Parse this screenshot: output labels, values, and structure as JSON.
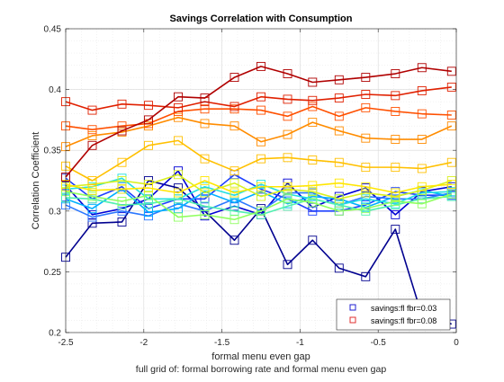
{
  "chart_data": {
    "type": "line",
    "title": "Savings Correlation with Consumption",
    "xlabel": "formal menu even gap",
    "ylabel": "Correlation Coefficient",
    "footnote": "full grid of: formal borrowing rate and formal menu even gap",
    "xlim": [
      -2.5,
      0
    ],
    "ylim": [
      0.2,
      0.45
    ],
    "xticks": [
      -2.5,
      -2,
      -1.5,
      -1,
      -0.5,
      0
    ],
    "xtick_labels": [
      "-2.5",
      "-2",
      "-1.5",
      "-1",
      "-0.5",
      "0"
    ],
    "yticks": [
      0.2,
      0.25,
      0.3,
      0.35,
      0.4,
      0.45
    ],
    "ytick_labels": [
      "0.2",
      "0.25",
      "0.3",
      "0.35",
      "0.4",
      "0.45"
    ],
    "grid": true,
    "marker": "square",
    "legend_position": "bottom-right",
    "legend": [
      {
        "label": "savings:fl   fbr=0.03",
        "color": "#1f1fd0"
      },
      {
        "label": "savings:fl   fbr=0.08",
        "color": "#e03030"
      }
    ],
    "x": [
      -2.5,
      -2.33,
      -2.14,
      -1.97,
      -1.78,
      -1.61,
      -1.42,
      -1.25,
      -1.08,
      -0.92,
      -0.75,
      -0.58,
      -0.39,
      -0.22,
      -0.03
    ],
    "series": [
      {
        "color": "#00008f",
        "values": [
          0.262,
          0.29,
          0.291,
          0.325,
          0.319,
          0.3,
          0.276,
          0.302,
          0.256,
          0.276,
          0.253,
          0.246,
          0.285,
          0.214,
          0.207
        ]
      },
      {
        "color": "#0000d4",
        "values": [
          0.321,
          0.297,
          0.302,
          0.31,
          0.333,
          0.296,
          0.304,
          0.297,
          0.323,
          0.303,
          0.312,
          0.319,
          0.297,
          0.316,
          0.32
        ]
      },
      {
        "color": "#1e40ff",
        "values": [
          0.327,
          0.31,
          0.32,
          0.302,
          0.31,
          0.31,
          0.33,
          0.318,
          0.31,
          0.3,
          0.3,
          0.305,
          0.316,
          0.313,
          0.313
        ]
      },
      {
        "color": "#2c78ff",
        "values": [
          0.305,
          0.295,
          0.3,
          0.296,
          0.306,
          0.3,
          0.31,
          0.3,
          0.315,
          0.315,
          0.305,
          0.312,
          0.31,
          0.31,
          0.315
        ]
      },
      {
        "color": "#00b0ff",
        "values": [
          0.31,
          0.302,
          0.318,
          0.299,
          0.302,
          0.316,
          0.307,
          0.316,
          0.306,
          0.312,
          0.31,
          0.303,
          0.312,
          0.317,
          0.312
        ]
      },
      {
        "color": "#22e0e0",
        "values": [
          0.318,
          0.32,
          0.327,
          0.31,
          0.31,
          0.32,
          0.313,
          0.322,
          0.314,
          0.31,
          0.305,
          0.31,
          0.306,
          0.315,
          0.316
        ]
      },
      {
        "color": "#50f0b0",
        "values": [
          0.311,
          0.31,
          0.305,
          0.306,
          0.31,
          0.304,
          0.3,
          0.297,
          0.304,
          0.31,
          0.305,
          0.3,
          0.305,
          0.31,
          0.312
        ]
      },
      {
        "color": "#90ff60",
        "values": [
          0.316,
          0.312,
          0.308,
          0.313,
          0.295,
          0.297,
          0.293,
          0.3,
          0.31,
          0.307,
          0.3,
          0.302,
          0.308,
          0.306,
          0.314
        ]
      },
      {
        "color": "#d8f020",
        "values": [
          0.32,
          0.322,
          0.325,
          0.322,
          0.33,
          0.315,
          0.323,
          0.312,
          0.318,
          0.316,
          0.31,
          0.315,
          0.312,
          0.317,
          0.325
        ]
      },
      {
        "color": "#ffe600",
        "values": [
          0.322,
          0.317,
          0.318,
          0.319,
          0.315,
          0.325,
          0.315,
          0.32,
          0.32,
          0.321,
          0.323,
          0.32,
          0.315,
          0.32,
          0.322
        ]
      },
      {
        "color": "#ffc000",
        "values": [
          0.337,
          0.325,
          0.34,
          0.354,
          0.358,
          0.343,
          0.333,
          0.343,
          0.344,
          0.342,
          0.34,
          0.336,
          0.336,
          0.335,
          0.34
        ]
      },
      {
        "color": "#ff8c00",
        "values": [
          0.353,
          0.362,
          0.365,
          0.37,
          0.377,
          0.372,
          0.37,
          0.357,
          0.363,
          0.373,
          0.366,
          0.36,
          0.359,
          0.359,
          0.37
        ]
      },
      {
        "color": "#ff5000",
        "values": [
          0.37,
          0.367,
          0.37,
          0.372,
          0.382,
          0.384,
          0.384,
          0.383,
          0.378,
          0.386,
          0.378,
          0.385,
          0.382,
          0.38,
          0.379
        ]
      },
      {
        "color": "#e02000",
        "values": [
          0.39,
          0.383,
          0.388,
          0.387,
          0.385,
          0.39,
          0.386,
          0.394,
          0.392,
          0.391,
          0.393,
          0.396,
          0.395,
          0.399,
          0.402
        ]
      },
      {
        "color": "#b00000",
        "values": [
          0.328,
          0.354,
          0.366,
          0.375,
          0.394,
          0.393,
          0.41,
          0.419,
          0.413,
          0.406,
          0.408,
          0.41,
          0.413,
          0.418,
          0.415
        ]
      }
    ]
  }
}
